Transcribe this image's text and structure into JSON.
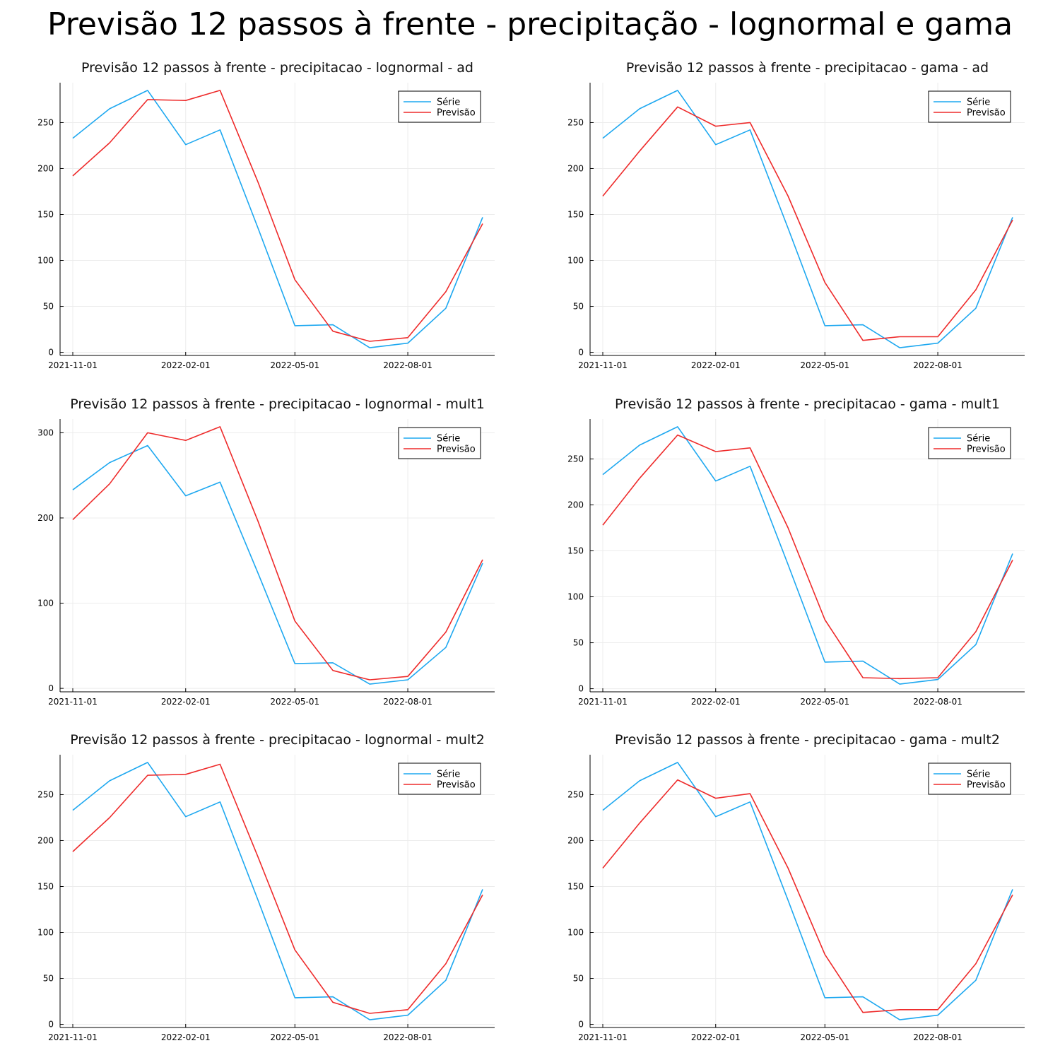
{
  "figure": {
    "title": "Previsão 12 passos à frente - precipitação - lognormal e gama"
  },
  "chart_data": [
    {
      "type": "line",
      "title": "Previsão 12 passos à frente - precipitacao - lognormal - ad",
      "x": [
        "2021-11-01",
        "2021-12-01",
        "2022-01-01",
        "2022-02-01",
        "2022-03-01",
        "2022-04-01",
        "2022-05-01",
        "2022-06-01",
        "2022-07-01",
        "2022-08-01",
        "2022-09-01",
        "2022-10-01"
      ],
      "xticks": [
        "2021-11-01",
        "2022-02-01",
        "2022-05-01",
        "2022-08-01"
      ],
      "yticks": [
        0,
        50,
        100,
        150,
        200,
        250
      ],
      "grid": true,
      "legend_position": "top-right",
      "series": [
        {
          "name": "Série",
          "color": "#1ea8f0",
          "values": [
            233,
            265,
            285,
            226,
            242,
            135,
            29,
            30,
            5,
            10,
            48,
            147
          ]
        },
        {
          "name": "Previsão",
          "color": "#ee2b2b",
          "values": [
            192,
            228,
            275,
            274,
            285,
            185,
            79,
            23,
            12,
            16,
            66,
            140
          ]
        }
      ]
    },
    {
      "type": "line",
      "title": "Previsão 12 passos à frente - precipitacao - gama - ad",
      "x": [
        "2021-11-01",
        "2021-12-01",
        "2022-01-01",
        "2022-02-01",
        "2022-03-01",
        "2022-04-01",
        "2022-05-01",
        "2022-06-01",
        "2022-07-01",
        "2022-08-01",
        "2022-09-01",
        "2022-10-01"
      ],
      "xticks": [
        "2021-11-01",
        "2022-02-01",
        "2022-05-01",
        "2022-08-01"
      ],
      "yticks": [
        0,
        50,
        100,
        150,
        200,
        250
      ],
      "grid": true,
      "legend_position": "top-right",
      "series": [
        {
          "name": "Série",
          "color": "#1ea8f0",
          "values": [
            233,
            265,
            285,
            226,
            242,
            135,
            29,
            30,
            5,
            10,
            48,
            147
          ]
        },
        {
          "name": "Previsão",
          "color": "#ee2b2b",
          "values": [
            170,
            219,
            267,
            246,
            250,
            170,
            76,
            13,
            17,
            17,
            68,
            144
          ]
        }
      ]
    },
    {
      "type": "line",
      "title": "Previsão 12 passos à frente - precipitacao - lognormal - mult1",
      "x": [
        "2021-11-01",
        "2021-12-01",
        "2022-01-01",
        "2022-02-01",
        "2022-03-01",
        "2022-04-01",
        "2022-05-01",
        "2022-06-01",
        "2022-07-01",
        "2022-08-01",
        "2022-09-01",
        "2022-10-01"
      ],
      "xticks": [
        "2021-11-01",
        "2022-02-01",
        "2022-05-01",
        "2022-08-01"
      ],
      "yticks": [
        0,
        100,
        200,
        300
      ],
      "grid": true,
      "legend_position": "top-right",
      "series": [
        {
          "name": "Série",
          "color": "#1ea8f0",
          "values": [
            233,
            265,
            285,
            226,
            242,
            135,
            29,
            30,
            5,
            10,
            48,
            147
          ]
        },
        {
          "name": "Previsão",
          "color": "#ee2b2b",
          "values": [
            198,
            240,
            300,
            291,
            307,
            196,
            79,
            21,
            10,
            14,
            66,
            151
          ]
        }
      ]
    },
    {
      "type": "line",
      "title": "Previsão 12 passos à frente - precipitacao - gama - mult1",
      "x": [
        "2021-11-01",
        "2021-12-01",
        "2022-01-01",
        "2022-02-01",
        "2022-03-01",
        "2022-04-01",
        "2022-05-01",
        "2022-06-01",
        "2022-07-01",
        "2022-08-01",
        "2022-09-01",
        "2022-10-01"
      ],
      "xticks": [
        "2021-11-01",
        "2022-02-01",
        "2022-05-01",
        "2022-08-01"
      ],
      "yticks": [
        0,
        50,
        100,
        150,
        200,
        250
      ],
      "grid": true,
      "legend_position": "top-right",
      "series": [
        {
          "name": "Série",
          "color": "#1ea8f0",
          "values": [
            233,
            265,
            285,
            226,
            242,
            135,
            29,
            30,
            5,
            10,
            48,
            147
          ]
        },
        {
          "name": "Previsão",
          "color": "#ee2b2b",
          "values": [
            178,
            229,
            276,
            258,
            262,
            175,
            75,
            12,
            11,
            12,
            62,
            140
          ]
        }
      ]
    },
    {
      "type": "line",
      "title": "Previsão 12 passos à frente - precipitacao - lognormal - mult2",
      "x": [
        "2021-11-01",
        "2021-12-01",
        "2022-01-01",
        "2022-02-01",
        "2022-03-01",
        "2022-04-01",
        "2022-05-01",
        "2022-06-01",
        "2022-07-01",
        "2022-08-01",
        "2022-09-01",
        "2022-10-01"
      ],
      "xticks": [
        "2021-11-01",
        "2022-02-01",
        "2022-05-01",
        "2022-08-01"
      ],
      "yticks": [
        0,
        50,
        100,
        150,
        200,
        250
      ],
      "grid": true,
      "legend_position": "top-right",
      "series": [
        {
          "name": "Série",
          "color": "#1ea8f0",
          "values": [
            233,
            265,
            285,
            226,
            242,
            135,
            29,
            30,
            5,
            10,
            48,
            147
          ]
        },
        {
          "name": "Previsão",
          "color": "#ee2b2b",
          "values": [
            188,
            225,
            271,
            272,
            283,
            182,
            81,
            24,
            12,
            16,
            66,
            141
          ]
        }
      ]
    },
    {
      "type": "line",
      "title": "Previsão 12 passos à frente - precipitacao - gama - mult2",
      "x": [
        "2021-11-01",
        "2021-12-01",
        "2022-01-01",
        "2022-02-01",
        "2022-03-01",
        "2022-04-01",
        "2022-05-01",
        "2022-06-01",
        "2022-07-01",
        "2022-08-01",
        "2022-09-01",
        "2022-10-01"
      ],
      "xticks": [
        "2021-11-01",
        "2022-02-01",
        "2022-05-01",
        "2022-08-01"
      ],
      "yticks": [
        0,
        50,
        100,
        150,
        200,
        250
      ],
      "grid": true,
      "legend_position": "top-right",
      "series": [
        {
          "name": "Série",
          "color": "#1ea8f0",
          "values": [
            233,
            265,
            285,
            226,
            242,
            135,
            29,
            30,
            5,
            10,
            48,
            147
          ]
        },
        {
          "name": "Previsão",
          "color": "#ee2b2b",
          "values": [
            170,
            219,
            266,
            246,
            251,
            170,
            76,
            13,
            16,
            16,
            66,
            141
          ]
        }
      ]
    }
  ]
}
